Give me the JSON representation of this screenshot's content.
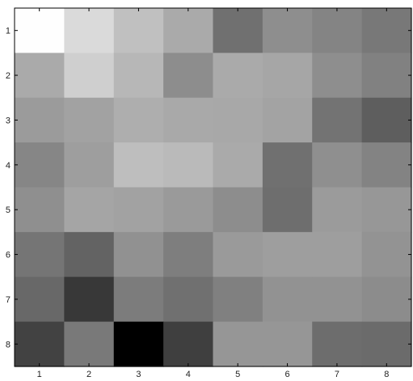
{
  "chart_data": {
    "type": "heatmap",
    "colormap": "gray",
    "value_range": [
      0,
      255
    ],
    "rows": [
      "1",
      "2",
      "3",
      "4",
      "5",
      "6",
      "7",
      "8"
    ],
    "cols": [
      "1",
      "2",
      "3",
      "4",
      "5",
      "6",
      "7",
      "8"
    ],
    "values": [
      [
        254,
        218,
        192,
        170,
        112,
        142,
        132,
        120
      ],
      [
        170,
        207,
        183,
        141,
        170,
        166,
        142,
        129
      ],
      [
        155,
        162,
        174,
        169,
        168,
        163,
        115,
        94
      ],
      [
        134,
        158,
        190,
        186,
        170,
        112,
        143,
        131
      ],
      [
        143,
        165,
        162,
        154,
        141,
        110,
        155,
        151
      ],
      [
        117,
        99,
        145,
        126,
        154,
        158,
        158,
        147
      ],
      [
        104,
        56,
        124,
        112,
        128,
        146,
        146,
        140
      ],
      [
        66,
        121,
        0,
        63,
        150,
        150,
        109,
        107
      ]
    ],
    "xlabel": "",
    "ylabel": "",
    "title": "",
    "grid": false
  }
}
